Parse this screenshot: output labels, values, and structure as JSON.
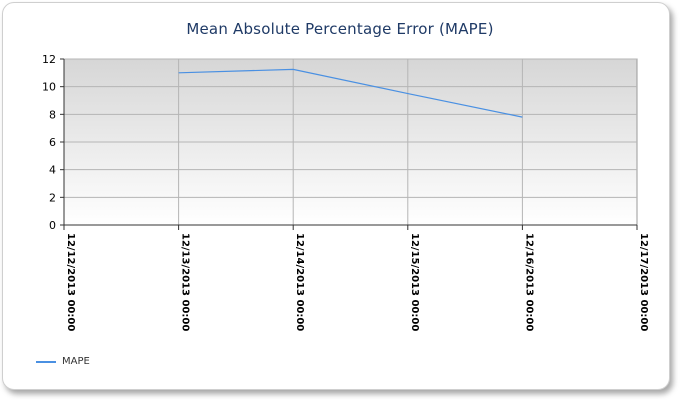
{
  "chart_data": {
    "type": "line",
    "title": "Mean Absolute Percentage Error (MAPE)",
    "xlabel": "",
    "ylabel": "",
    "categories": [
      "12/12/2013 00:00",
      "12/13/2013 00:00",
      "12/14/2013 00:00",
      "12/15/2013 00:00",
      "12/16/2013 00:00",
      "12/17/2013 00:00"
    ],
    "y_ticks": [
      "0",
      "2",
      "4",
      "6",
      "8",
      "10",
      "12"
    ],
    "ylim": [
      0,
      12
    ],
    "grid": true,
    "legend_position": "bottom-left",
    "series": [
      {
        "name": "MAPE",
        "color": "#4a90e2",
        "points": [
          {
            "x": "12/13/2013 00:00",
            "y": 11.0
          },
          {
            "x": "12/14/2013 00:00",
            "y": 11.25
          },
          {
            "x": "12/15/2013 00:00",
            "y": 9.5
          },
          {
            "x": "12/16/2013 00:00",
            "y": 7.8
          }
        ]
      }
    ]
  }
}
